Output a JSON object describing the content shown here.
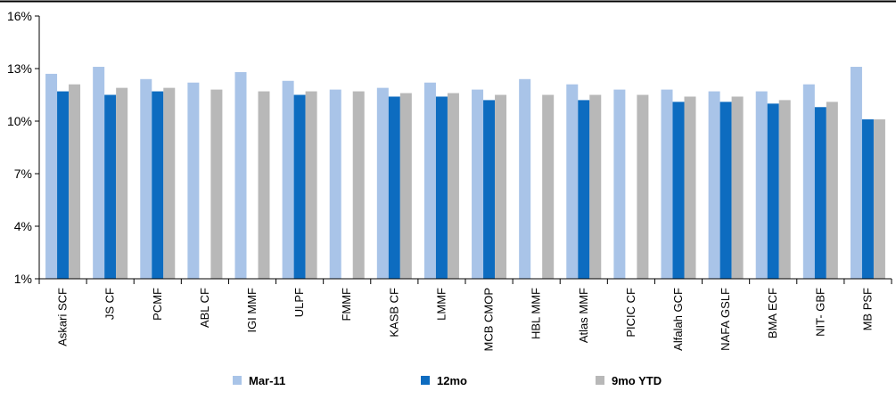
{
  "chart_data": {
    "type": "bar",
    "title": "",
    "xlabel": "",
    "ylabel": "",
    "y_tick_labels": [
      "1%",
      "4%",
      "7%",
      "10%",
      "13%",
      "16%"
    ],
    "y_ticks": [
      1,
      4,
      7,
      10,
      13,
      16
    ],
    "ylim": [
      1,
      16
    ],
    "grid": false,
    "legend_position": "bottom",
    "categories": [
      "Askari SCF",
      "JS CF",
      "PCMF",
      "ABL CF",
      "IGI MMF",
      "ULPF",
      "FMMF",
      "KASB CF",
      "LMMF",
      "MCB CMOP",
      "HBL MMF",
      "Atlas MMF",
      "PICIC CF",
      "Alfalah GCF",
      "NAFA GSLF",
      "BMA ECF",
      "NIT- GBF",
      "MB PSF"
    ],
    "series": [
      {
        "name": "Mar-11",
        "color": "#a9c4e8",
        "values": [
          12.7,
          13.1,
          12.4,
          12.2,
          12.8,
          12.3,
          11.8,
          11.9,
          12.2,
          11.8,
          12.4,
          12.1,
          11.8,
          11.8,
          11.7,
          11.7,
          12.1,
          13.1
        ]
      },
      {
        "name": "12mo",
        "color": "#0d6cc0",
        "values": [
          11.7,
          11.5,
          11.7,
          null,
          null,
          11.5,
          null,
          11.4,
          11.4,
          11.2,
          null,
          11.2,
          null,
          11.1,
          11.1,
          11.0,
          10.8,
          10.1
        ]
      },
      {
        "name": "9mo YTD",
        "color": "#b8b8b8",
        "values": [
          12.1,
          11.9,
          11.9,
          11.8,
          11.7,
          11.7,
          11.7,
          11.6,
          11.6,
          11.5,
          11.5,
          11.5,
          11.5,
          11.4,
          11.4,
          11.2,
          11.1,
          10.1
        ]
      }
    ]
  }
}
